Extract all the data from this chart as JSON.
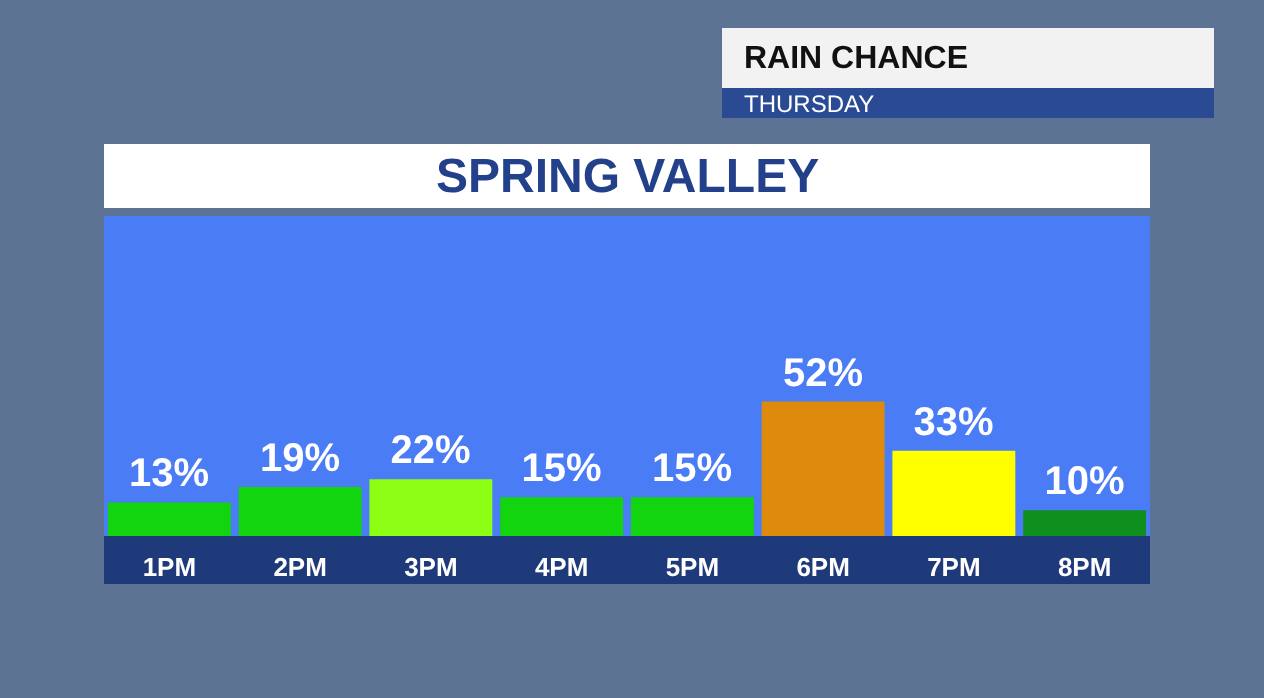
{
  "chart_data": {
    "type": "bar",
    "title": "RAIN CHANCE",
    "subtitle": "THURSDAY",
    "annotations": [
      "SPRING VALLEY"
    ],
    "categories": [
      "1PM",
      "2PM",
      "3PM",
      "4PM",
      "5PM",
      "6PM",
      "7PM",
      "8PM"
    ],
    "values": [
      13,
      19,
      22,
      15,
      15,
      52,
      33,
      10
    ],
    "colors": [
      "#12d40f",
      "#12d40f",
      "#8cff14",
      "#12d40f",
      "#12d40f",
      "#de8a0a",
      "#ffff00",
      "#0f8f1e"
    ],
    "value_labels": [
      "13%",
      "19%",
      "22%",
      "15%",
      "15%",
      "52%",
      "33%",
      "10%"
    ],
    "tick_labels": "x"
  }
}
